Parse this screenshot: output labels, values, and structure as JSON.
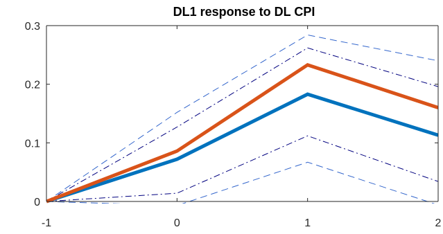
{
  "chart_data": {
    "type": "line",
    "title": "DL1 response to DL CPI",
    "xlabel": "",
    "ylabel": "",
    "x": [
      -1,
      0,
      1,
      2
    ],
    "xlim": [
      -1,
      2
    ],
    "ylim": [
      0,
      0.3
    ],
    "x_ticks": [
      -1,
      0,
      1,
      2
    ],
    "x_tick_labels": [
      "-1",
      "0",
      "1",
      "2"
    ],
    "y_ticks": [
      0,
      0.1,
      0.2,
      0.3
    ],
    "y_tick_labels": [
      "0",
      "0.1",
      "0.2",
      "0.3"
    ],
    "grid": false,
    "series": [
      {
        "values": [
          0,
          0.086,
          0.233,
          0.16
        ],
        "color": "#D95319",
        "style": "solid",
        "width": "thick"
      },
      {
        "values": [
          0,
          0.072,
          0.183,
          0.113
        ],
        "color": "#0072BD",
        "style": "solid",
        "width": "thick"
      },
      {
        "values": [
          0,
          0.152,
          0.284,
          0.24
        ],
        "color": "#3366CC",
        "style": "dashed",
        "width": "thin"
      },
      {
        "values": [
          0,
          -0.007,
          0.067,
          -0.006
        ],
        "color": "#3366CC",
        "style": "dashed",
        "width": "thin"
      },
      {
        "values": [
          0,
          0.127,
          0.262,
          0.196
        ],
        "color": "#00007F",
        "style": "dashdot",
        "width": "thin"
      },
      {
        "values": [
          0,
          0.014,
          0.112,
          0.034
        ],
        "color": "#00007F",
        "style": "dashdot",
        "width": "thin"
      }
    ]
  }
}
